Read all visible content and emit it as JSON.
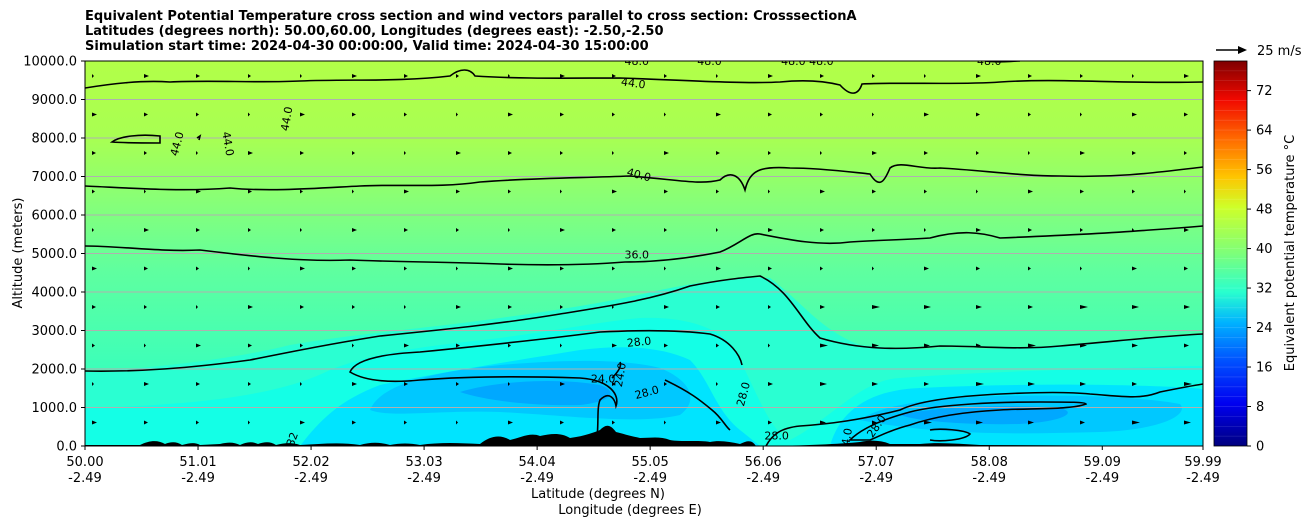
{
  "title": {
    "line1": "Equivalent Potential Temperature cross section and wind vectors parallel to cross section: CrosssectionA",
    "line2": "Latitudes (degrees north): 50.00,60.00, Longitudes (degrees east): -2.50,-2.50",
    "line3": "Simulation start time: 2024-04-30 00:00:00, Valid time: 2024-04-30 15:00:00"
  },
  "chart_data": {
    "type": "heatmap",
    "xlabel": "Latitude (degrees N)",
    "xlabel2": "Longitude (degrees E)",
    "ylabel": "Altitude (meters)",
    "ylim": [
      0,
      10000
    ],
    "xlim": [
      50.0,
      59.99
    ],
    "y_ticks": [
      "0.0",
      "1000.0",
      "2000.0",
      "3000.0",
      "4000.0",
      "5000.0",
      "6000.0",
      "7000.0",
      "8000.0",
      "9000.0",
      "10000.0"
    ],
    "y_tick_values": [
      0,
      1000,
      2000,
      3000,
      4000,
      5000,
      6000,
      7000,
      8000,
      9000,
      10000
    ],
    "x_ticks": [
      {
        "lat": "50.00",
        "lon": "-2.49",
        "value": 50.0
      },
      {
        "lat": "51.01",
        "lon": "-2.49",
        "value": 51.01
      },
      {
        "lat": "52.02",
        "lon": "-2.49",
        "value": 52.02
      },
      {
        "lat": "53.03",
        "lon": "-2.49",
        "value": 53.03
      },
      {
        "lat": "54.04",
        "lon": "-2.49",
        "value": 54.04
      },
      {
        "lat": "55.05",
        "lon": "-2.49",
        "value": 55.05
      },
      {
        "lat": "56.06",
        "lon": "-2.49",
        "value": 56.06
      },
      {
        "lat": "57.07",
        "lon": "-2.49",
        "value": 57.07
      },
      {
        "lat": "58.08",
        "lon": "-2.49",
        "value": 58.08
      },
      {
        "lat": "59.09",
        "lon": "-2.49",
        "value": 59.09
      },
      {
        "lat": "59.99",
        "lon": "-2.49",
        "value": 59.99
      }
    ],
    "colorbar": {
      "label": "Equivalent potential temperature °C",
      "ticks": [
        "0",
        "8",
        "16",
        "24",
        "32",
        "40",
        "48",
        "56",
        "64",
        "72"
      ],
      "tick_values": [
        0,
        8,
        16,
        24,
        32,
        40,
        48,
        56,
        64,
        72
      ],
      "range": [
        0,
        78
      ]
    },
    "wind_key": "25 m/s",
    "contour_labels": [
      {
        "text": "44.0",
        "x": 54.9,
        "alt": 9430,
        "rot": 8
      },
      {
        "text": "48.0",
        "x": 54.93,
        "alt": 10000,
        "rot": 0
      },
      {
        "text": "48.0",
        "x": 55.58,
        "alt": 10000,
        "rot": 0
      },
      {
        "text": "48.0",
        "x": 56.33,
        "alt": 10000,
        "rot": 0
      },
      {
        "text": "48.0",
        "x": 56.58,
        "alt": 10000,
        "rot": 0
      },
      {
        "text": "48.0",
        "x": 58.08,
        "alt": 10000,
        "rot": 0
      },
      {
        "text": "44.0",
        "x": 50.82,
        "alt": 7850,
        "rot": -75
      },
      {
        "text": "44.0",
        "x": 51.28,
        "alt": 7850,
        "rot": 80
      },
      {
        "text": "44.0",
        "x": 51.8,
        "alt": 8500,
        "rot": -80
      },
      {
        "text": "40.0",
        "x": 54.95,
        "alt": 7050,
        "rot": 15
      },
      {
        "text": "36.0",
        "x": 54.93,
        "alt": 4980,
        "rot": 0
      },
      {
        "text": "28.0",
        "x": 54.95,
        "alt": 2710,
        "rot": -6
      },
      {
        "text": "28.0",
        "x": 55.02,
        "alt": 1400,
        "rot": -15
      },
      {
        "text": "28.0",
        "x": 55.88,
        "alt": 1350,
        "rot": -75
      },
      {
        "text": "28.0",
        "x": 56.18,
        "alt": 270,
        "rot": 0
      },
      {
        "text": "24.0",
        "x": 54.63,
        "alt": 1750,
        "rot": 0
      },
      {
        "text": "24.0",
        "x": 54.78,
        "alt": 1850,
        "rot": -80
      },
      {
        "text": "28.0",
        "x": 57.07,
        "alt": 520,
        "rot": -55
      },
      {
        "text": "24.0",
        "x": 56.8,
        "alt": 150,
        "rot": -80
      },
      {
        "text": "32",
        "x": 51.85,
        "alt": 180,
        "rot": -70
      }
    ],
    "notes": "Field mostly 30-42 C; cool cores (~22-26 C) near 54-55.5N and 57-59.5N below 2 km; warmest (~44-46 C) near top. Black terrain along bottom."
  }
}
